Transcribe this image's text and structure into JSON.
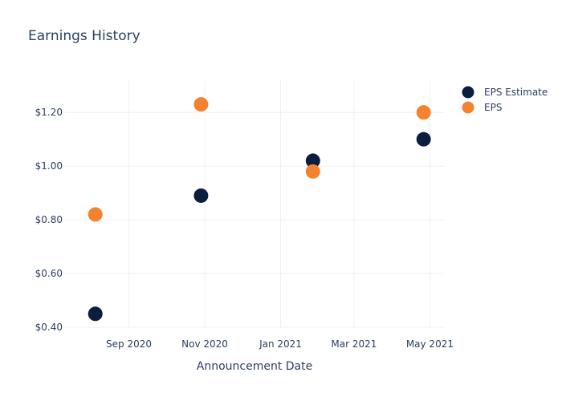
{
  "chart_data": {
    "type": "scatter",
    "title": "Earnings History",
    "xlabel": "Announcement Date",
    "ylabel": "",
    "x_ticks": [
      {
        "date": "2020-09-01",
        "label": "Sep 2020"
      },
      {
        "date": "2020-11-01",
        "label": "Nov 2020"
      },
      {
        "date": "2021-01-01",
        "label": "Jan 2021"
      },
      {
        "date": "2021-03-01",
        "label": "Mar 2021"
      },
      {
        "date": "2021-05-01",
        "label": "May 2021"
      }
    ],
    "y_ticks": [
      {
        "value": 0.4,
        "label": "$0.40"
      },
      {
        "value": 0.6,
        "label": "$0.60"
      },
      {
        "value": 0.8,
        "label": "$0.80"
      },
      {
        "value": 1.0,
        "label": "$1.00"
      },
      {
        "value": 1.2,
        "label": "$1.20"
      }
    ],
    "xlim": [
      "2020-07-11",
      "2021-05-13"
    ],
    "ylim": [
      0.4,
      1.32
    ],
    "grid": true,
    "legend_position": "top-right",
    "series": [
      {
        "name": "EPS Estimate",
        "color": "#0b1e3f",
        "points": [
          {
            "x": "2020-08-05",
            "y": 0.45
          },
          {
            "x": "2020-10-29",
            "y": 0.89
          },
          {
            "x": "2021-01-27",
            "y": 1.02
          },
          {
            "x": "2021-04-26",
            "y": 1.1
          }
        ]
      },
      {
        "name": "EPS",
        "color": "#f58231",
        "points": [
          {
            "x": "2020-08-05",
            "y": 0.82
          },
          {
            "x": "2020-10-29",
            "y": 1.23
          },
          {
            "x": "2021-01-27",
            "y": 0.98
          },
          {
            "x": "2021-04-26",
            "y": 1.2
          }
        ]
      }
    ]
  }
}
